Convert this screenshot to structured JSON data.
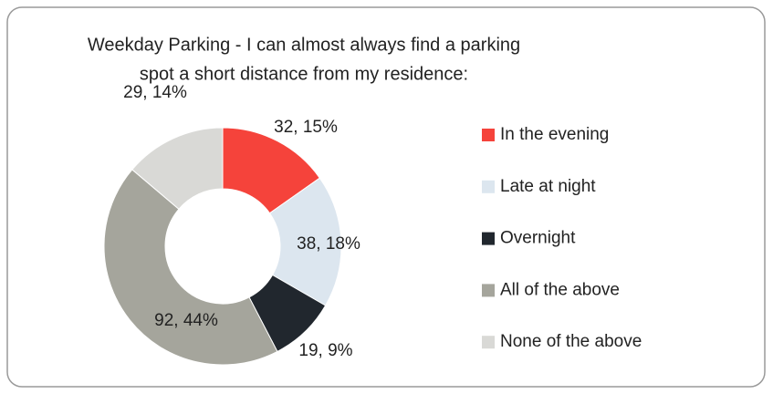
{
  "chart_data": {
    "type": "donut",
    "title": [
      "Weekday Parking - I can almost always find a parking",
      "spot a short distance from my residence:"
    ],
    "categories": [
      "In the evening",
      "Late at night",
      "Overnight",
      "All of the above",
      "None of the above"
    ],
    "values": [
      32,
      38,
      19,
      92,
      29
    ],
    "value_labels": [
      "32, 15%",
      "38, 18%",
      "19, 9%",
      "92, 44%",
      "29, 14%"
    ],
    "colors": [
      "#f5433b",
      "#dce6ef",
      "#21272e",
      "#a5a59c",
      "#d9d9d6"
    ],
    "legend": "right"
  }
}
